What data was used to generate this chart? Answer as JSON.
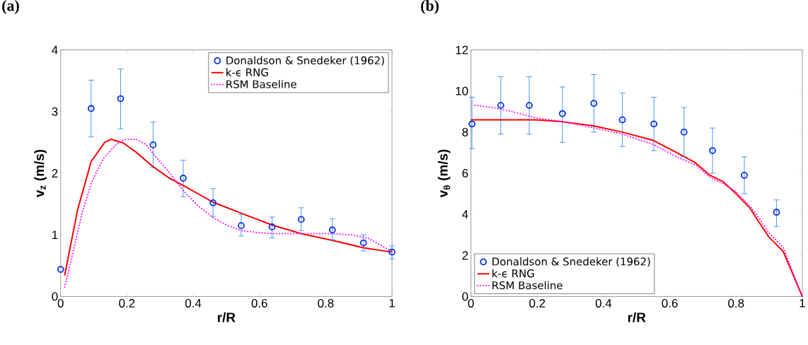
{
  "chart_data": [
    {
      "type": "line",
      "title": "(a)",
      "xlabel": "r/R",
      "ylabel": "v$_{z}$ (m/s)",
      "xlim": [
        0,
        1
      ],
      "ylim": [
        0,
        4
      ],
      "xticks": [
        0,
        0.2,
        0.4,
        0.6,
        0.8,
        1
      ],
      "yticks": [
        0,
        1,
        2,
        3,
        4
      ],
      "grid": false,
      "legend": "top right",
      "series": [
        {
          "name": "Donaldson & Snedeker (1962)",
          "type": "scatter",
          "marker": "circle",
          "color": "#0a32e6",
          "x": [
            0.0,
            0.092,
            0.181,
            0.279,
            0.37,
            0.46,
            0.545,
            0.638,
            0.726,
            0.82,
            0.914,
            1.0
          ],
          "values": [
            0.44,
            3.05,
            3.21,
            2.46,
            1.92,
            1.52,
            1.15,
            1.13,
            1.25,
            1.08,
            0.87,
            0.72
          ],
          "errors": [
            null,
            [
              2.59,
              3.51
            ],
            [
              2.72,
              3.69
            ],
            [
              2.09,
              2.83
            ],
            [
              1.62,
              2.21
            ],
            [
              1.3,
              1.75
            ],
            [
              0.98,
              1.33
            ],
            [
              0.95,
              1.29
            ],
            [
              1.07,
              1.44
            ],
            [
              0.92,
              1.26
            ],
            [
              0.74,
              1.0
            ],
            [
              0.61,
              0.82
            ]
          ]
        },
        {
          "name": "k-ϵ RNG",
          "line_style": "solid",
          "color": "#ff0000",
          "x": [
            0.012,
            0.051,
            0.092,
            0.133,
            0.152,
            0.189,
            0.228,
            0.278,
            0.328,
            0.37,
            0.46,
            0.545,
            0.638,
            0.726,
            0.82,
            0.914,
            1.0
          ],
          "values": [
            0.34,
            1.4,
            2.19,
            2.5,
            2.55,
            2.49,
            2.34,
            2.11,
            1.92,
            1.8,
            1.53,
            1.35,
            1.16,
            1.02,
            0.91,
            0.79,
            0.72
          ]
        },
        {
          "name": "RSM Baseline",
          "line_style": "dotted",
          "color": "#ff00ff",
          "x": [
            0.012,
            0.037,
            0.065,
            0.094,
            0.129,
            0.165,
            0.193,
            0.228,
            0.257,
            0.285,
            0.328,
            0.37,
            0.413,
            0.46,
            0.505,
            0.545,
            0.59,
            0.638,
            0.726,
            0.82,
            0.88,
            0.93,
            0.98,
            1.0
          ],
          "values": [
            0.15,
            0.71,
            1.36,
            1.86,
            2.24,
            2.45,
            2.55,
            2.55,
            2.47,
            2.28,
            2.01,
            1.72,
            1.48,
            1.28,
            1.15,
            1.07,
            1.04,
            1.02,
            1.02,
            1.02,
            1.0,
            0.94,
            0.79,
            0.73
          ]
        }
      ]
    },
    {
      "type": "line",
      "title": "(b)",
      "xlabel": "r/R",
      "ylabel": "v$_{θ}$ (m/s)",
      "xlim": [
        0,
        1
      ],
      "ylim": [
        0,
        12
      ],
      "xticks": [
        0,
        0.2,
        0.4,
        0.6,
        0.8,
        1
      ],
      "yticks": [
        0,
        2,
        4,
        6,
        8,
        10,
        12
      ],
      "grid": false,
      "legend": "bottom left",
      "series": [
        {
          "name": "Donaldson & Snedeker (1962)",
          "type": "scatter",
          "marker": "circle",
          "color": "#0a32e6",
          "x": [
            0.003,
            0.09,
            0.176,
            0.276,
            0.371,
            0.457,
            0.552,
            0.643,
            0.729,
            0.825,
            0.922
          ],
          "values": [
            8.4,
            9.3,
            9.3,
            8.9,
            9.4,
            8.6,
            8.4,
            8.0,
            7.1,
            5.9,
            4.1
          ],
          "errors": [
            [
              7.2,
              9.7
            ],
            [
              7.9,
              10.7
            ],
            [
              7.9,
              10.7
            ],
            [
              7.5,
              10.2
            ],
            [
              8.0,
              10.8
            ],
            [
              7.3,
              9.9
            ],
            [
              7.1,
              9.7
            ],
            [
              6.8,
              9.2
            ],
            [
              6.0,
              8.2
            ],
            [
              5.0,
              6.8
            ],
            [
              3.4,
              4.7
            ]
          ]
        },
        {
          "name": "k-ϵ RNG",
          "line_style": "solid",
          "color": "#ff0000",
          "x": [
            0.0,
            0.194,
            0.279,
            0.372,
            0.457,
            0.55,
            0.621,
            0.678,
            0.721,
            0.76,
            0.8,
            0.842,
            0.87,
            0.899,
            0.942,
            1.0
          ],
          "values": [
            8.6,
            8.6,
            8.5,
            8.3,
            8.0,
            7.6,
            7.0,
            6.5,
            5.9,
            5.6,
            5.0,
            4.3,
            3.6,
            2.9,
            2.2,
            0.0
          ]
        },
        {
          "name": "RSM Baseline",
          "line_style": "dotted",
          "color": "#ff00ff",
          "x": [
            0.012,
            0.066,
            0.123,
            0.194,
            0.279,
            0.372,
            0.457,
            0.55,
            0.621,
            0.678,
            0.721,
            0.76,
            0.8,
            0.842,
            0.87,
            0.899,
            0.942,
            1.0
          ],
          "values": [
            9.3,
            9.2,
            9.0,
            8.7,
            8.5,
            8.2,
            7.9,
            7.4,
            6.8,
            6.4,
            5.8,
            5.5,
            5.1,
            4.4,
            3.8,
            3.1,
            2.4,
            0.0
          ]
        }
      ]
    }
  ]
}
